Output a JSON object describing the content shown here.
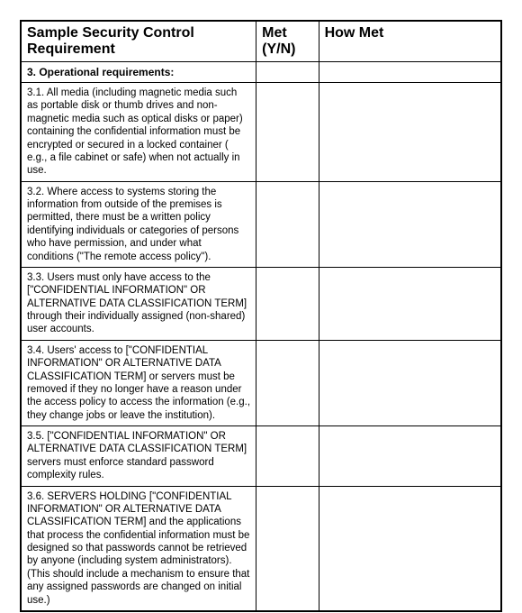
{
  "table": {
    "headers": {
      "requirement": "Sample Security Control Requirement",
      "met": "Met (Y/N)",
      "how_met": "How Met"
    },
    "section_header": "3. Operational requirements:",
    "rows": [
      {
        "requirement": "3.1. All media (including magnetic media such as portable disk or thumb drives and non-magnetic media such as optical disks or paper) containing the confidential information must be encrypted or secured in a locked container ( e.g., a file cabinet or safe) when not actually in use.",
        "met": "",
        "how_met": ""
      },
      {
        "requirement": "3.2. Where access to systems storing the information from outside of the premises is permitted, there must be a written policy identifying individuals or categories of persons who have permission, and under what conditions (\"The remote access policy\").",
        "met": "",
        "how_met": ""
      },
      {
        "requirement": "3.3. Users must only have access to the [\"CONFIDENTIAL INFORMATION\" OR ALTERNATIVE DATA CLASSIFICATION TERM] through their individually assigned (non-shared) user accounts.",
        "met": "",
        "how_met": ""
      },
      {
        "requirement": "3.4. Users' access to [\"CONFIDENTIAL INFORMATION\" OR ALTERNATIVE DATA CLASSIFICATION TERM] or servers must be removed if they no longer have a reason under the access policy to access the information (e.g., they change jobs or leave the institution).",
        "met": "",
        "how_met": ""
      },
      {
        "requirement": "3.5. [\"CONFIDENTIAL INFORMATION\" OR ALTERNATIVE DATA CLASSIFICATION TERM] servers must enforce standard password complexity rules.",
        "met": "",
        "how_met": ""
      },
      {
        "requirement": "3.6. SERVERS HOLDING [\"CONFIDENTIAL INFORMATION\" OR ALTERNATIVE DATA CLASSIFICATION TERM] and the applications that process the confidential information must be designed so that passwords cannot be retrieved by anyone (including system administrators). (This should include a mechanism to ensure that any assigned passwords are changed on initial use.)",
        "met": "",
        "how_met": ""
      }
    ],
    "colors": {
      "border": "#000000",
      "background": "#ffffff",
      "text": "#000000"
    }
  }
}
